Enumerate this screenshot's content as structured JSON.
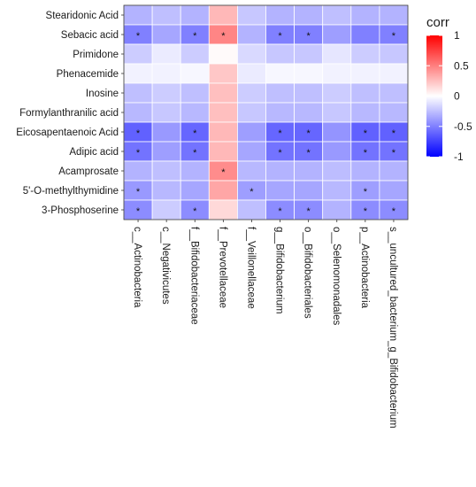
{
  "chart_data": {
    "type": "heatmap",
    "rows": [
      "Stearidonic Acid",
      "Sebacic acid",
      "Primidone",
      "Phenacemide",
      "Inosine",
      "Formylanthranilic acid",
      "Eicosapentaenoic Acid",
      "Adipic acid",
      "Acamprosate",
      "5'-O-methylthymidine",
      "3-Phosphoserine"
    ],
    "columns": [
      "c__Actinobacteria",
      "c__Negativicutes",
      "f__Bifidobacteriaceae",
      "f__Prevotellaceae",
      "f__Veillonellaceae",
      "g__Bifidobacterium",
      "o__Bifidobacteriales",
      "o__Selenomonadales",
      "p__Actinobacteria",
      "s__uncultured_bacterium_g_Bifidobacterium"
    ],
    "values": [
      [
        -0.3,
        -0.25,
        -0.3,
        0.28,
        -0.22,
        -0.3,
        -0.3,
        -0.25,
        -0.3,
        -0.3
      ],
      [
        -0.5,
        -0.35,
        -0.5,
        0.48,
        -0.3,
        -0.5,
        -0.5,
        -0.38,
        -0.5,
        -0.5
      ],
      [
        -0.2,
        -0.08,
        -0.2,
        0.02,
        -0.15,
        -0.22,
        -0.22,
        -0.1,
        -0.2,
        -0.22
      ],
      [
        -0.05,
        -0.05,
        -0.03,
        0.22,
        -0.08,
        -0.03,
        -0.03,
        -0.05,
        -0.05,
        -0.05
      ],
      [
        -0.25,
        -0.2,
        -0.25,
        0.25,
        -0.2,
        -0.25,
        -0.25,
        -0.2,
        -0.25,
        -0.25
      ],
      [
        -0.28,
        -0.22,
        -0.28,
        0.25,
        -0.22,
        -0.28,
        -0.28,
        -0.22,
        -0.28,
        -0.28
      ],
      [
        -0.62,
        -0.4,
        -0.6,
        0.28,
        -0.38,
        -0.6,
        -0.6,
        -0.42,
        -0.62,
        -0.62
      ],
      [
        -0.55,
        -0.38,
        -0.55,
        0.28,
        -0.35,
        -0.55,
        -0.55,
        -0.4,
        -0.55,
        -0.55
      ],
      [
        -0.3,
        -0.25,
        -0.3,
        0.45,
        -0.28,
        -0.3,
        -0.3,
        -0.26,
        -0.3,
        -0.3
      ],
      [
        -0.4,
        -0.28,
        -0.35,
        0.35,
        -0.38,
        -0.35,
        -0.35,
        -0.28,
        -0.38,
        -0.35
      ],
      [
        -0.45,
        -0.2,
        -0.45,
        0.15,
        -0.25,
        -0.45,
        -0.45,
        -0.3,
        -0.45,
        -0.45
      ]
    ],
    "significant": [
      [
        false,
        false,
        false,
        false,
        false,
        false,
        false,
        false,
        false,
        false
      ],
      [
        true,
        false,
        true,
        true,
        false,
        true,
        true,
        false,
        false,
        true
      ],
      [
        false,
        false,
        false,
        false,
        false,
        false,
        false,
        false,
        false,
        false
      ],
      [
        false,
        false,
        false,
        false,
        false,
        false,
        false,
        false,
        false,
        false
      ],
      [
        false,
        false,
        false,
        false,
        false,
        false,
        false,
        false,
        false,
        false
      ],
      [
        false,
        false,
        false,
        false,
        false,
        false,
        false,
        false,
        false,
        false
      ],
      [
        true,
        false,
        true,
        false,
        false,
        true,
        true,
        false,
        true,
        true
      ],
      [
        true,
        false,
        true,
        false,
        false,
        true,
        true,
        false,
        true,
        true
      ],
      [
        false,
        false,
        false,
        true,
        false,
        false,
        false,
        false,
        false,
        false
      ],
      [
        true,
        false,
        false,
        false,
        true,
        false,
        false,
        false,
        true,
        false
      ],
      [
        true,
        false,
        true,
        false,
        false,
        true,
        true,
        false,
        true,
        true
      ]
    ],
    "significance_marker": "*",
    "legend": {
      "title": "corr",
      "ticks": [
        1,
        0.5,
        0,
        -0.5,
        -1
      ],
      "tick_labels": [
        "1",
        "0.5",
        "0",
        "-0.5",
        "-1"
      ],
      "range": [
        -1,
        1
      ],
      "colors": {
        "low": "#0000ff",
        "mid": "#ffffff",
        "high": "#ff0000"
      },
      "placement": "right"
    },
    "grid": true
  }
}
